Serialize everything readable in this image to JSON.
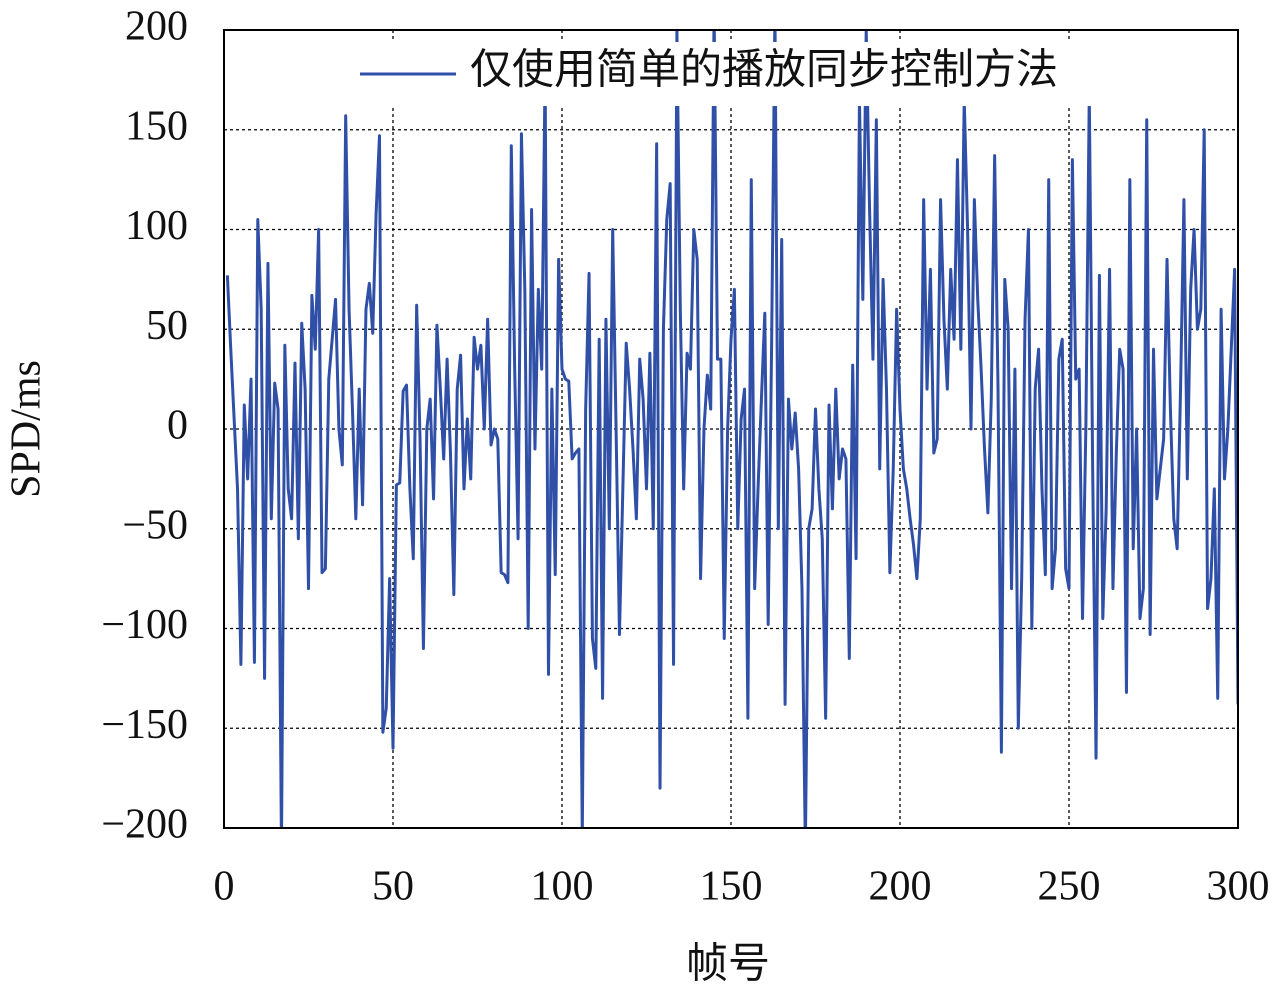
{
  "chart_data": {
    "type": "line",
    "xlabel": "帧号",
    "ylabel": "SPD/ms",
    "xlim": [
      0,
      300
    ],
    "xticks": [
      0,
      50,
      100,
      150,
      200,
      250,
      300
    ],
    "ylim": [
      -200,
      200
    ],
    "yticks": [
      {
        "value": -200,
        "label": "−200"
      },
      {
        "value": -150,
        "label": "−150"
      },
      {
        "value": -100,
        "label": "−100"
      },
      {
        "value": -50,
        "label": "−50"
      },
      0,
      50,
      100,
      150,
      200
    ],
    "grid": true,
    "legend": "upper right",
    "x": [
      1,
      2,
      3,
      4,
      5,
      6,
      7,
      8,
      9,
      10,
      11,
      12,
      13,
      14,
      15,
      16,
      17,
      18,
      19,
      20,
      21,
      22,
      23,
      24,
      25,
      26,
      27,
      28,
      29,
      30,
      31,
      32,
      33,
      34,
      35,
      36,
      37,
      38,
      39,
      40,
      41,
      42,
      43,
      44,
      45,
      46,
      47,
      48,
      49,
      50,
      51,
      52,
      53,
      54,
      55,
      56,
      57,
      58,
      59,
      60,
      61,
      62,
      63,
      64,
      65,
      66,
      67,
      68,
      69,
      70,
      71,
      72,
      73,
      74,
      75,
      76,
      77,
      78,
      79,
      80,
      81,
      82,
      83,
      84,
      85,
      86,
      87,
      88,
      89,
      90,
      91,
      92,
      93,
      94,
      95,
      96,
      97,
      98,
      99,
      100,
      101,
      102,
      103,
      104,
      105,
      106,
      107,
      108,
      109,
      110,
      111,
      112,
      113,
      114,
      115,
      116,
      117,
      118,
      119,
      120,
      121,
      122,
      123,
      124,
      125,
      126,
      127,
      128,
      129,
      130,
      131,
      132,
      133,
      134,
      135,
      136,
      137,
      138,
      139,
      140,
      141,
      142,
      143,
      144,
      145,
      146,
      147,
      148,
      149,
      150,
      151,
      152,
      153,
      154,
      155,
      156,
      157,
      158,
      159,
      160,
      161,
      162,
      163,
      164,
      165,
      166,
      167,
      168,
      169,
      170,
      171,
      172,
      173,
      174,
      175,
      176,
      177,
      178,
      179,
      180,
      181,
      182,
      183,
      184,
      185,
      186,
      187,
      188,
      189,
      190,
      191,
      192,
      193,
      194,
      195,
      196,
      197,
      198,
      199,
      200,
      201,
      202,
      203,
      204,
      205,
      206,
      207,
      208,
      209,
      210,
      211,
      212,
      213,
      214,
      215,
      216,
      217,
      218,
      219,
      220,
      221,
      222,
      223,
      224,
      225,
      226,
      227,
      228,
      229,
      230,
      231,
      232,
      233,
      234,
      235,
      236,
      237,
      238,
      239,
      240,
      241,
      242,
      243,
      244,
      245,
      246,
      247,
      248,
      249,
      250,
      251,
      252,
      253,
      254,
      255,
      256,
      257,
      258,
      259,
      260,
      261,
      262,
      263,
      264,
      265,
      266,
      267,
      268,
      269,
      270,
      271,
      272,
      273,
      274,
      275,
      276,
      277,
      278,
      279,
      280,
      281,
      282,
      283,
      284,
      285,
      286,
      287,
      288,
      289,
      290,
      291,
      292,
      293,
      294,
      295,
      296,
      297,
      298,
      299,
      300
    ],
    "series": [
      {
        "name": "仅使用简单的播放同步控制方法",
        "color": "#3050a8",
        "values": [
          77,
          40,
          5,
          -30,
          -118,
          12,
          -25,
          25,
          -117,
          105,
          60,
          -125,
          83,
          -45,
          23,
          10,
          -210,
          42,
          -30,
          -45,
          33,
          -55,
          53,
          20,
          -80,
          67,
          40,
          100,
          -72,
          -70,
          25,
          45,
          65,
          0,
          -18,
          157,
          60,
          10,
          -45,
          20,
          -38,
          60,
          73,
          48,
          108,
          147,
          -152,
          -140,
          -75,
          -160,
          -28,
          -27,
          19,
          22,
          -30,
          -65,
          62,
          -5,
          -110,
          0,
          15,
          -35,
          52,
          20,
          -15,
          35,
          -12,
          -83,
          20,
          37,
          -30,
          5,
          -25,
          46,
          30,
          42,
          0,
          55,
          -8,
          0,
          -5,
          -72,
          -73,
          -77,
          142,
          30,
          -55,
          148,
          70,
          -100,
          110,
          -10,
          70,
          30,
          180,
          -123,
          20,
          -73,
          85,
          30,
          25,
          24,
          -15,
          -12,
          -10,
          -203,
          10,
          78,
          -105,
          -120,
          45,
          -135,
          55,
          -50,
          100,
          0,
          -103,
          -30,
          43,
          20,
          -10,
          -45,
          35,
          15,
          -30,
          38,
          -50,
          143,
          -180,
          50,
          105,
          123,
          -118,
          200,
          60,
          -30,
          38,
          30,
          100,
          85,
          -75,
          0,
          27,
          10,
          210,
          35,
          35,
          -105,
          0,
          45,
          70,
          -50,
          5,
          20,
          -145,
          125,
          -80,
          -30,
          15,
          58,
          -98,
          40,
          210,
          -50,
          95,
          -138,
          15,
          -10,
          8,
          -20,
          -80,
          -210,
          -50,
          -40,
          10,
          -30,
          -55,
          -145,
          12,
          -40,
          20,
          -25,
          -10,
          -15,
          -115,
          32,
          -65,
          165,
          65,
          200,
          110,
          35,
          155,
          -20,
          75,
          20,
          -72,
          -20,
          60,
          10,
          -20,
          -30,
          -45,
          -58,
          -75,
          -45,
          115,
          20,
          80,
          -12,
          -5,
          115,
          55,
          20,
          80,
          45,
          135,
          40,
          165,
          100,
          0,
          115,
          65,
          30,
          -10,
          -42,
          15,
          137,
          20,
          -162,
          75,
          50,
          -80,
          30,
          -150,
          -75,
          55,
          100,
          -100,
          20,
          40,
          -30,
          -73,
          125,
          -80,
          -60,
          35,
          45,
          -70,
          -80,
          135,
          25,
          30,
          -95,
          2,
          168,
          -20,
          -165,
          77,
          -95,
          -40,
          80,
          -80,
          -12,
          40,
          30,
          -132,
          125,
          -60,
          0,
          -95,
          -80,
          155,
          -103,
          40,
          -35,
          -20,
          -5,
          85,
          10,
          -45,
          -60,
          20,
          115,
          -25,
          70,
          100,
          50,
          60,
          150,
          -90,
          -75,
          -30,
          -135,
          60,
          -25,
          0,
          40,
          80,
          -138
        ]
      }
    ]
  }
}
